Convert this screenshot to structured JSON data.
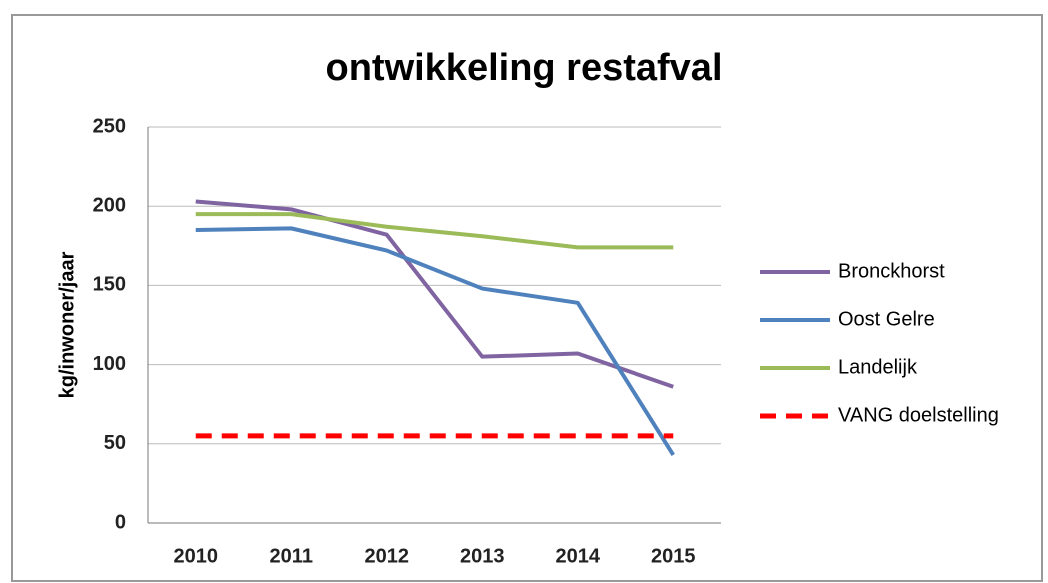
{
  "chart_data": {
    "type": "line",
    "title": "ontwikkeling restafval",
    "y_label": "kg/inwoner/jaar",
    "categories": [
      "2010",
      "2011",
      "2012",
      "2013",
      "2014",
      "2015"
    ],
    "series": [
      {
        "name": "Bronckhorst",
        "color": "#8064a2",
        "values": [
          203,
          198,
          182,
          105,
          107,
          86
        ]
      },
      {
        "name": "Oost Gelre",
        "color": "#4f81bd",
        "values": [
          185,
          186,
          172,
          148,
          139,
          43
        ]
      },
      {
        "name": "Landelijk",
        "color": "#9bbb59",
        "values": [
          195,
          195,
          187,
          181,
          174,
          174
        ]
      },
      {
        "name": "VANG doelstelling",
        "color": "#ff0000",
        "dashed": true,
        "values": [
          55,
          55,
          55,
          55,
          55,
          55
        ]
      }
    ],
    "ylim": [
      0,
      250
    ],
    "yticks": [
      0,
      50,
      100,
      150,
      200,
      250
    ],
    "grid": true,
    "legend": "right"
  }
}
